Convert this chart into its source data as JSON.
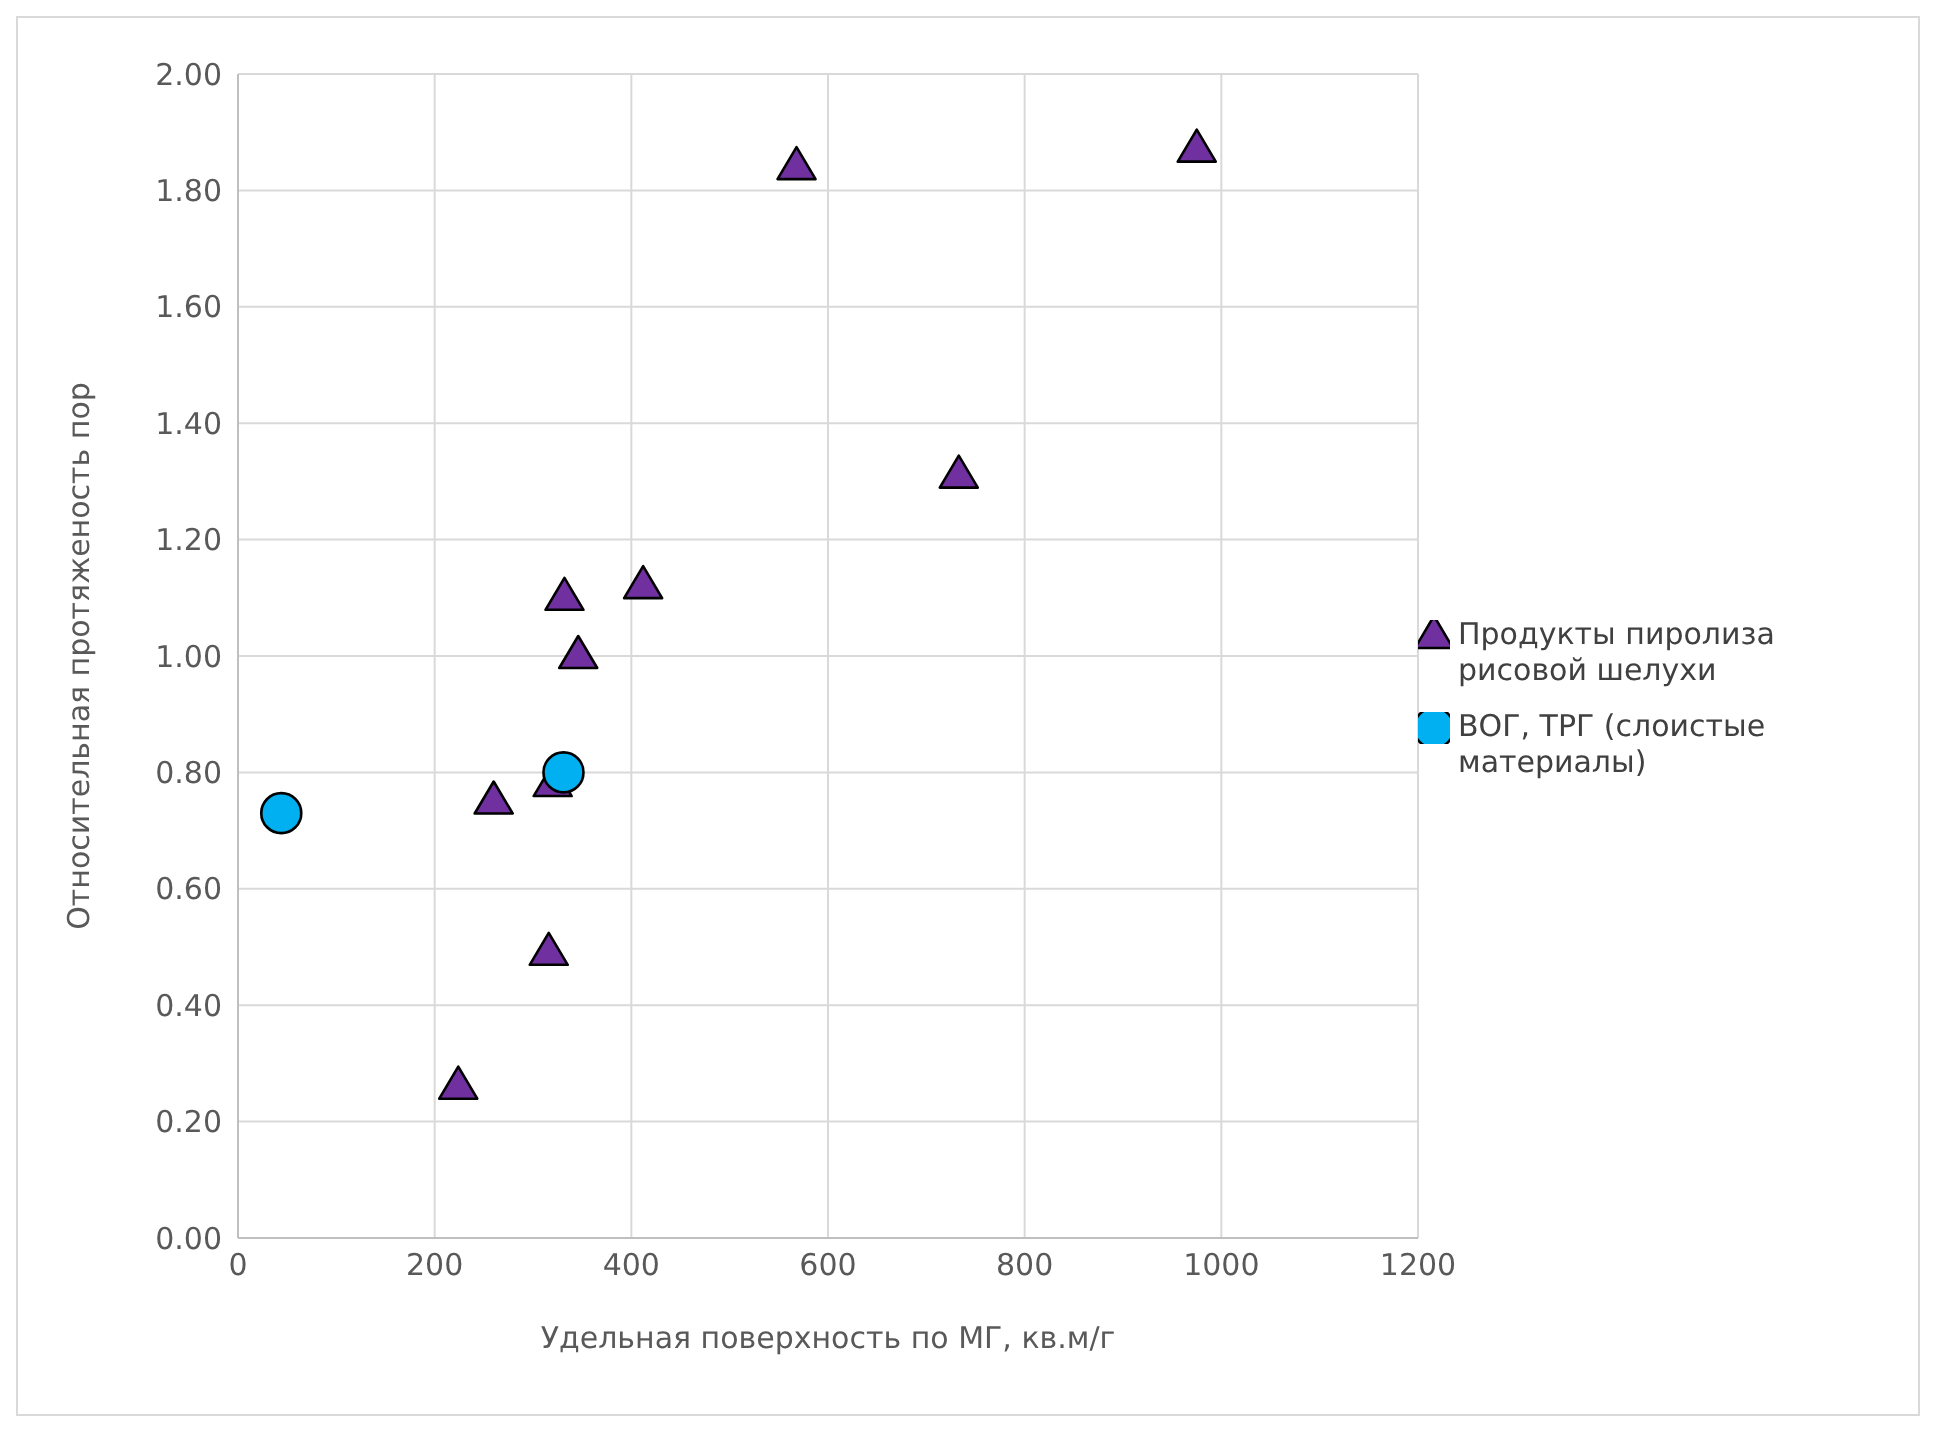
{
  "chart_data": {
    "type": "scatter",
    "xlabel": "Удельная поверхность по МГ, кв.м/г",
    "ylabel": "Относительная протяженость пор",
    "series": [
      {
        "name": "Продукты пиролиза рисовой шелухи",
        "color": "#7030a0",
        "marker": "triangle",
        "x": [
          224,
          260,
          320,
          316,
          346,
          332,
          412,
          568,
          975,
          733
        ],
        "values": [
          0.26,
          0.75,
          0.78,
          0.49,
          1.0,
          1.1,
          1.12,
          1.84,
          1.87,
          1.31
        ]
      },
      {
        "name": "ВОГ, ТРГ (слоистые материалы)",
        "color": "#00b0f0",
        "marker": "circle",
        "x": [
          44,
          331
        ],
        "values": [
          0.73,
          0.8
        ]
      }
    ],
    "xlim": [
      0,
      1200
    ],
    "xticks": [
      0,
      200,
      400,
      600,
      800,
      1000,
      1200
    ],
    "ylim": [
      0,
      2
    ],
    "yticks": [
      {
        "value": 0,
        "label": "0.00"
      },
      {
        "value": 0.2,
        "label": "0.20"
      },
      {
        "value": 0.4,
        "label": "0.40"
      },
      {
        "value": 0.6,
        "label": "0.60"
      },
      {
        "value": 0.8,
        "label": "0.80"
      },
      {
        "value": 1,
        "label": "1.00"
      },
      {
        "value": 1.2,
        "label": "1.20"
      },
      {
        "value": 1.4,
        "label": "1.40"
      },
      {
        "value": 1.6,
        "label": "1.60"
      },
      {
        "value": 1.8,
        "label": "1.80"
      },
      {
        "value": 2,
        "label": "2.00"
      }
    ],
    "grid": true,
    "legend": "right"
  }
}
